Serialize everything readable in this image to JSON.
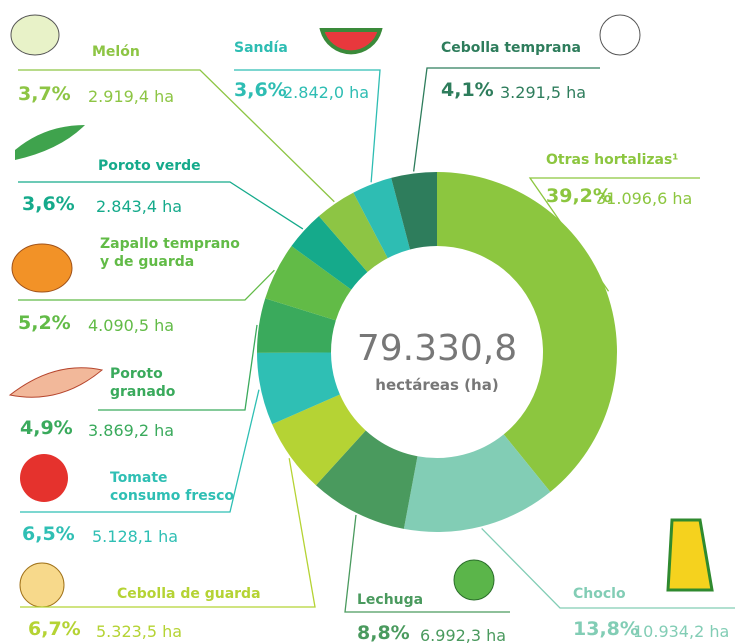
{
  "chart_data": {
    "type": "donut",
    "total": "79.330,8",
    "total_unit": "hectáreas (ha)",
    "categories": [
      "Otras hortalizas¹",
      "Choclo",
      "Lechuga",
      "Cebolla de guarda",
      "Tomate\nconsumo fresco",
      "Poroto\ngranado",
      "Zapallo temprano\ny de guarda",
      "Poroto verde",
      "Melón",
      "Sandía",
      "Cebolla temprana"
    ],
    "values": [
      39.2,
      13.8,
      8.8,
      6.7,
      6.5,
      4.9,
      5.2,
      3.6,
      3.7,
      3.6,
      4.1
    ],
    "value_labels": [
      "39,2%",
      "13,8%",
      "8,8%",
      "6,7%",
      "6,5%",
      "4,9%",
      "5,2%",
      "3,6%",
      "3,7%",
      "3,6%",
      "4,1%"
    ],
    "areas": [
      "31.096,6  ha",
      "10.934,2  ha",
      "6.992,3 ha",
      "5.323,5 ha",
      "5.128,1  ha",
      "3.869,2 ha",
      "4.090,5 ha",
      "2.843,4 ha",
      "2.919,4 ha",
      "2.842,0 ha",
      "3.291,5 ha"
    ],
    "colors": [
      "#8cc63f",
      "#82cdb5",
      "#4a9a5e",
      "#b5d334",
      "#2fbfb4",
      "#3aaa5c",
      "#62bb47",
      "#15aa8b",
      "#8dc544",
      "#2ebdb3",
      "#2e7d5c"
    ]
  }
}
